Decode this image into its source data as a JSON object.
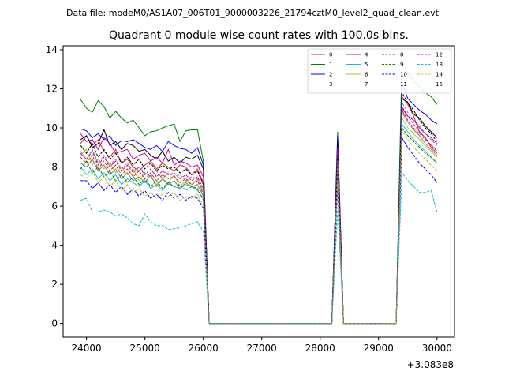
{
  "chart_data": {
    "type": "line",
    "suptitle": "Data file: modeM0/AS1A07_006T01_9000003226_21794cztM0_level2_quad_clean.evt",
    "title": "Quadrant 0 module wise count rates with 100.0s bins.",
    "xlabel": "",
    "ylabel": "",
    "offset_label": "+3.083e8",
    "xlim": [
      23600,
      30300
    ],
    "ylim": [
      -0.7,
      14.2
    ],
    "xticks": [
      24000,
      25000,
      26000,
      27000,
      28000,
      29000,
      30000
    ],
    "yticks": [
      0,
      2,
      4,
      6,
      8,
      10,
      12,
      14
    ],
    "grid": false,
    "legend_position": "top-right",
    "x": [
      23900,
      24000,
      24100,
      24200,
      24300,
      24400,
      24500,
      24600,
      24700,
      24800,
      24900,
      25000,
      25100,
      25200,
      25300,
      25400,
      25500,
      25600,
      25700,
      25800,
      25900,
      26000,
      26100,
      26200,
      26300,
      26400,
      26500,
      26600,
      26700,
      26800,
      26900,
      27000,
      27100,
      27200,
      27300,
      27400,
      27500,
      27600,
      27700,
      27800,
      27900,
      28000,
      28100,
      28200,
      28300,
      28400,
      28500,
      28600,
      28700,
      28800,
      28900,
      29000,
      29100,
      29200,
      29300,
      29400,
      29500,
      29600,
      29700,
      29800,
      29900,
      30000
    ],
    "series": [
      {
        "name": "0",
        "color": "#d62728",
        "dash": "solid",
        "active": [
          9.2,
          9.6,
          9.1,
          9.4,
          8.8,
          8.5,
          8.9,
          8.2,
          8.4,
          8.0,
          7.8,
          8.1,
          8.3,
          7.9,
          8.2,
          8.0,
          7.8,
          8.1,
          8.0,
          7.6,
          7.9,
          7.2
        ],
        "spike": 8.4,
        "tail": [
          11.6,
          11.2,
          10.6,
          9.8,
          9.5,
          9.0,
          8.7
        ]
      },
      {
        "name": "1",
        "color": "#008000",
        "dash": "solid",
        "active": [
          11.45,
          11.0,
          10.8,
          11.4,
          11.1,
          10.5,
          10.85,
          10.5,
          10.25,
          10.4,
          10.0,
          9.6,
          9.8,
          9.85,
          10.0,
          10.1,
          10.2,
          9.3,
          9.85,
          9.9,
          9.9,
          8.3
        ],
        "spike": 9.8,
        "tail": [
          13.4,
          12.8,
          12.4,
          12.1,
          11.8,
          11.6,
          11.2
        ]
      },
      {
        "name": "2",
        "color": "#0000ff",
        "dash": "solid",
        "active": [
          9.95,
          9.85,
          9.5,
          9.7,
          9.4,
          9.6,
          9.1,
          9.35,
          9.3,
          9.4,
          9.2,
          9.0,
          8.9,
          9.1,
          8.8,
          9.3,
          9.1,
          8.95,
          8.9,
          8.7,
          9.0,
          8.1
        ],
        "spike": 9.6,
        "tail": [
          12.3,
          11.5,
          11.2,
          10.9,
          10.7,
          10.4,
          10.2
        ]
      },
      {
        "name": "3",
        "color": "#000000",
        "dash": "solid",
        "active": [
          9.4,
          9.6,
          9.0,
          9.2,
          9.9,
          9.1,
          9.3,
          8.9,
          9.2,
          9.1,
          8.8,
          8.9,
          8.6,
          8.4,
          8.8,
          8.3,
          8.5,
          8.2,
          8.5,
          8.4,
          8.6,
          7.9
        ],
        "spike": 9.3,
        "tail": [
          11.5,
          11.3,
          10.7,
          10.5,
          10.1,
          9.8,
          9.5
        ]
      },
      {
        "name": "4",
        "color": "#bf00bf",
        "dash": "solid",
        "active": [
          9.7,
          9.3,
          9.4,
          8.9,
          9.5,
          9.2,
          8.7,
          8.8,
          8.9,
          8.4,
          8.6,
          8.7,
          8.3,
          8.5,
          8.2,
          8.9,
          8.1,
          8.3,
          8.2,
          8.0,
          8.1,
          7.5
        ],
        "spike": 9.0,
        "tail": [
          11.0,
          10.6,
          10.4,
          10.0,
          9.7,
          9.5,
          9.2
        ]
      },
      {
        "name": "5",
        "color": "#17becf",
        "dash": "solid",
        "active": [
          8.0,
          7.6,
          7.9,
          7.4,
          7.7,
          7.3,
          7.6,
          7.1,
          7.4,
          7.2,
          7.0,
          7.3,
          6.9,
          7.1,
          6.8,
          7.2,
          7.0,
          6.9,
          7.1,
          7.0,
          6.8,
          6.4
        ],
        "spike": 7.6,
        "tail": [
          10.2,
          9.8,
          9.4,
          9.1,
          8.8,
          8.5,
          8.2
        ]
      },
      {
        "name": "6",
        "color": "#bcbd22",
        "dash": "solid",
        "active": [
          8.6,
          8.9,
          8.1,
          8.4,
          7.9,
          8.2,
          7.7,
          8.0,
          7.6,
          7.9,
          7.3,
          7.7,
          7.5,
          7.1,
          7.4,
          7.2,
          7.6,
          7.0,
          7.3,
          7.1,
          7.4,
          6.7
        ],
        "spike": 8.1,
        "tail": [
          10.5,
          10.0,
          9.7,
          9.4,
          9.1,
          8.8,
          8.5
        ]
      },
      {
        "name": "7",
        "color": "#7f7f7f",
        "dash": "solid",
        "active": [
          8.2,
          8.0,
          8.4,
          7.8,
          8.1,
          7.6,
          7.9,
          7.4,
          7.7,
          7.3,
          7.5,
          7.2,
          7.6,
          7.0,
          7.4,
          7.1,
          7.3,
          6.9,
          7.2,
          7.0,
          7.1,
          6.5
        ],
        "spike": 7.9,
        "tail": [
          10.8,
          10.3,
          9.9,
          9.6,
          9.2,
          8.9,
          8.6
        ]
      },
      {
        "name": "8",
        "color": "#d62728",
        "dash": "dashed",
        "active": [
          8.5,
          8.2,
          8.6,
          7.9,
          8.3,
          7.8,
          8.1,
          7.6,
          7.9,
          7.5,
          7.8,
          7.4,
          7.7,
          7.3,
          7.6,
          7.4,
          7.5,
          7.2,
          7.4,
          7.1,
          7.3,
          6.6
        ],
        "spike": 8.0,
        "tail": [
          10.9,
          10.4,
          10.0,
          9.7,
          9.4,
          9.1,
          8.9
        ]
      },
      {
        "name": "9",
        "color": "#008000",
        "dash": "dashed",
        "active": [
          7.9,
          8.3,
          7.7,
          8.0,
          7.5,
          7.8,
          7.3,
          7.6,
          7.2,
          7.5,
          7.1,
          7.4,
          7.0,
          7.3,
          6.9,
          7.2,
          7.0,
          7.1,
          6.8,
          7.0,
          6.9,
          6.3
        ],
        "spike": 7.7,
        "tail": [
          10.0,
          9.6,
          9.3,
          9.0,
          8.7,
          8.5,
          8.2
        ]
      },
      {
        "name": "10",
        "color": "#0000ff",
        "dash": "dashed",
        "active": [
          7.3,
          7.3,
          6.9,
          7.2,
          6.8,
          7.1,
          6.7,
          7.0,
          6.6,
          6.9,
          6.5,
          6.8,
          6.4,
          6.6,
          6.3,
          6.7,
          6.4,
          6.6,
          6.3,
          6.5,
          6.4,
          5.9
        ],
        "spike": 7.0,
        "tail": [
          9.5,
          9.0,
          8.6,
          8.2,
          7.9,
          7.6,
          7.2
        ]
      },
      {
        "name": "11",
        "color": "#000000",
        "dash": "dashed",
        "active": [
          9.1,
          8.7,
          9.2,
          8.5,
          8.9,
          8.4,
          8.7,
          8.2,
          8.5,
          8.1,
          8.4,
          7.9,
          8.2,
          7.8,
          8.1,
          7.9,
          8.0,
          7.7,
          7.9,
          7.6,
          7.8,
          7.1
        ],
        "spike": 8.6,
        "tail": [
          11.8,
          11.3,
          10.9,
          10.4,
          10.0,
          9.7,
          9.3
        ]
      },
      {
        "name": "12",
        "color": "#bf00bf",
        "dash": "dashed",
        "active": [
          8.7,
          8.4,
          8.8,
          8.1,
          8.5,
          8.0,
          8.3,
          7.8,
          8.1,
          7.7,
          8.0,
          7.6,
          7.9,
          7.5,
          7.8,
          7.6,
          7.7,
          7.4,
          7.6,
          7.3,
          7.5,
          6.9
        ],
        "spike": 8.2,
        "tail": [
          11.1,
          10.6,
          10.2,
          9.8,
          9.5,
          9.1,
          8.8
        ]
      },
      {
        "name": "13",
        "color": "#17becf",
        "dash": "dashed",
        "active": [
          6.3,
          6.4,
          5.7,
          5.7,
          5.8,
          5.7,
          5.5,
          5.6,
          5.4,
          5.1,
          5.0,
          5.6,
          5.2,
          5.0,
          5.0,
          4.8,
          4.85,
          4.9,
          5.0,
          5.1,
          5.2,
          4.7
        ],
        "spike": 5.8,
        "tail": [
          7.7,
          7.3,
          7.0,
          6.7,
          6.7,
          6.8,
          5.7
        ]
      },
      {
        "name": "14",
        "color": "#bcbd22",
        "dash": "dashed",
        "active": [
          7.6,
          7.4,
          7.8,
          7.2,
          7.5,
          7.0,
          7.3,
          6.8,
          7.1,
          6.7,
          6.9,
          6.5,
          6.7,
          6.4,
          6.6,
          6.5,
          6.7,
          6.3,
          6.5,
          6.4,
          6.6,
          6.0
        ],
        "spike": 7.2,
        "tail": [
          9.9,
          9.4,
          9.0,
          8.7,
          8.4,
          8.1,
          7.8
        ]
      },
      {
        "name": "15",
        "color": "#7f7f7f",
        "dash": "dashed",
        "active": [
          8.8,
          8.4,
          8.9,
          8.2,
          8.6,
          8.1,
          8.4,
          7.9,
          8.2,
          7.8,
          8.0,
          7.7,
          7.5,
          7.8,
          7.4,
          7.7,
          7.5,
          7.6,
          7.3,
          7.5,
          7.4,
          6.8
        ],
        "spike": 8.3,
        "tail": [
          11.3,
          10.8,
          10.4,
          10.1,
          9.7,
          9.4,
          9.1
        ]
      }
    ]
  }
}
